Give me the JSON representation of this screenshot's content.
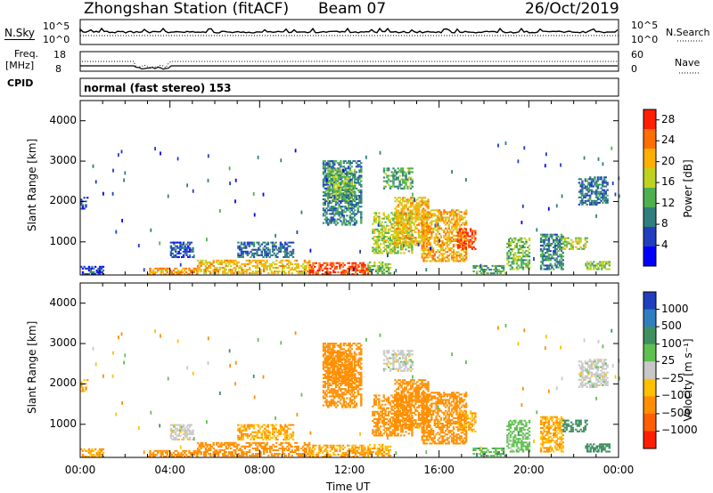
{
  "header": {
    "station": "Zhongshan Station (fitACF)",
    "beam": "Beam 07",
    "date": "26/Oct/2019"
  },
  "status_panel": {
    "nsky_label": "N.Sky",
    "nsky_ticks": [
      "10^5",
      "10^0"
    ],
    "nsearch_label": "N.Search",
    "nsearch_ticks": [
      "10^5",
      "10^0"
    ],
    "freq_label": "Freq.",
    "freq_unit": "[MHz]",
    "freq_ticks": [
      "18",
      "8"
    ],
    "nave_label": "Nave",
    "nave_ticks": [
      "60",
      "0"
    ],
    "cpid_label": "CPID",
    "cpid_text": "normal (fast stereo) 153"
  },
  "chart_data": [
    {
      "type": "heatmap",
      "parameter": "power",
      "ylabel": "Slant Range [km]",
      "xlabel": "",
      "x_range_hours": [
        0,
        24
      ],
      "ylim": [
        180,
        4500
      ],
      "y_ticks": [
        "1000",
        "2000",
        "3000",
        "4000"
      ],
      "colorbar_label": "Power [dB]",
      "colorbar_ticks": [
        "4",
        "8",
        "12",
        "16",
        "20",
        "24",
        "28"
      ],
      "colorbar_range": [
        0,
        30
      ],
      "colorbar_colors": [
        "#0000ff",
        "#1f3fbf",
        "#2f7f7f",
        "#4fb04f",
        "#bfd21f",
        "#ffaf00",
        "#ff6f00",
        "#ff1f00"
      ],
      "patches": [
        {
          "t": [
            0.0,
            1.0
          ],
          "r": [
            180,
            380
          ],
          "v": 5
        },
        {
          "t": [
            3.0,
            5.2
          ],
          "r": [
            180,
            360
          ],
          "v": 22
        },
        {
          "t": [
            5.2,
            10.2
          ],
          "r": [
            200,
            560
          ],
          "v": 20
        },
        {
          "t": [
            10.2,
            12.8
          ],
          "r": [
            180,
            480
          ],
          "v": 27
        },
        {
          "t": [
            12.8,
            13.8
          ],
          "r": [
            200,
            500
          ],
          "v": 14
        },
        {
          "t": [
            13.0,
            14.8
          ],
          "r": [
            700,
            1700
          ],
          "v": 16
        },
        {
          "t": [
            14.0,
            15.5
          ],
          "r": [
            900,
            2100
          ],
          "v": 20
        },
        {
          "t": [
            15.2,
            17.2
          ],
          "r": [
            500,
            1800
          ],
          "v": 21
        },
        {
          "t": [
            16.8,
            17.6
          ],
          "r": [
            800,
            1300
          ],
          "v": 27
        },
        {
          "t": [
            10.8,
            12.5
          ],
          "r": [
            1400,
            3000
          ],
          "v": 9
        },
        {
          "t": [
            11.0,
            12.2
          ],
          "r": [
            2000,
            2800
          ],
          "v": 14
        },
        {
          "t": [
            13.5,
            14.8
          ],
          "r": [
            2300,
            2800
          ],
          "v": 12
        },
        {
          "t": [
            19.0,
            20.0
          ],
          "r": [
            300,
            1100
          ],
          "v": 14
        },
        {
          "t": [
            20.5,
            21.5
          ],
          "r": [
            300,
            1200
          ],
          "v": 10
        },
        {
          "t": [
            21.5,
            22.6
          ],
          "r": [
            800,
            1100
          ],
          "v": 16
        },
        {
          "t": [
            22.5,
            23.6
          ],
          "r": [
            300,
            500
          ],
          "v": 14
        },
        {
          "t": [
            22.2,
            23.5
          ],
          "r": [
            1900,
            2600
          ],
          "v": 8
        },
        {
          "t": [
            0.0,
            0.3
          ],
          "r": [
            1800,
            2100
          ],
          "v": 5
        },
        {
          "t": [
            17.5,
            19.0
          ],
          "r": [
            200,
            400
          ],
          "v": 12
        },
        {
          "t": [
            4.0,
            5.0
          ],
          "r": [
            600,
            1000
          ],
          "v": 6
        },
        {
          "t": [
            7.0,
            9.5
          ],
          "r": [
            600,
            1000
          ],
          "v": 8
        }
      ]
    },
    {
      "type": "heatmap",
      "parameter": "velocity",
      "ylabel": "Slant Range [km]",
      "xlabel": "Time UT",
      "x_range_hours": [
        0,
        24
      ],
      "x_ticks": [
        "00:00",
        "04:00",
        "08:00",
        "12:00",
        "16:00",
        "20:00",
        "00:00"
      ],
      "ylim": [
        180,
        4500
      ],
      "y_ticks": [
        "1000",
        "2000",
        "3000",
        "4000"
      ],
      "colorbar_label": "Velocity [m s⁻¹]",
      "colorbar_ticks": [
        "1000",
        "500",
        "100",
        "25",
        "−25",
        "−100",
        "−500",
        "−1000"
      ],
      "colorbar_colors": [
        "#1f3fbf",
        "#2f7fbf",
        "#3f8f5f",
        "#5fc04f",
        "#c8c8c8",
        "#ffc000",
        "#ff8f00",
        "#ff5f00",
        "#ff1f00"
      ],
      "patches": [
        {
          "t": [
            0.0,
            1.0
          ],
          "r": [
            180,
            380
          ],
          "v": -100
        },
        {
          "t": [
            3.0,
            5.2
          ],
          "r": [
            180,
            360
          ],
          "v": -200
        },
        {
          "t": [
            5.2,
            10.2
          ],
          "r": [
            200,
            560
          ],
          "v": -200
        },
        {
          "t": [
            10.2,
            12.8
          ],
          "r": [
            180,
            480
          ],
          "v": -100
        },
        {
          "t": [
            12.8,
            13.8
          ],
          "r": [
            200,
            500
          ],
          "v": -100
        },
        {
          "t": [
            13.0,
            14.8
          ],
          "r": [
            700,
            1700
          ],
          "v": -200
        },
        {
          "t": [
            14.0,
            15.5
          ],
          "r": [
            900,
            2100
          ],
          "v": -300
        },
        {
          "t": [
            15.2,
            17.2
          ],
          "r": [
            500,
            1800
          ],
          "v": -200
        },
        {
          "t": [
            16.8,
            17.6
          ],
          "r": [
            800,
            1300
          ],
          "v": -100
        },
        {
          "t": [
            10.8,
            12.5
          ],
          "r": [
            1400,
            3000
          ],
          "v": -200
        },
        {
          "t": [
            11.0,
            12.2
          ],
          "r": [
            2000,
            2800
          ],
          "v": -300
        },
        {
          "t": [
            13.5,
            14.8
          ],
          "r": [
            2300,
            2800
          ],
          "v": 0
        },
        {
          "t": [
            19.0,
            20.0
          ],
          "r": [
            300,
            1100
          ],
          "v": 50
        },
        {
          "t": [
            20.5,
            21.5
          ],
          "r": [
            300,
            1200
          ],
          "v": -100
        },
        {
          "t": [
            21.5,
            22.6
          ],
          "r": [
            800,
            1100
          ],
          "v": 200
        },
        {
          "t": [
            22.5,
            23.6
          ],
          "r": [
            300,
            500
          ],
          "v": 200
        },
        {
          "t": [
            22.2,
            23.5
          ],
          "r": [
            1900,
            2600
          ],
          "v": 0
        },
        {
          "t": [
            0.0,
            0.3
          ],
          "r": [
            1800,
            2100
          ],
          "v": -100
        },
        {
          "t": [
            17.5,
            19.0
          ],
          "r": [
            200,
            400
          ],
          "v": 80
        },
        {
          "t": [
            4.0,
            5.0
          ],
          "r": [
            600,
            1000
          ],
          "v": 0
        },
        {
          "t": [
            7.0,
            9.5
          ],
          "r": [
            600,
            1000
          ],
          "v": -100
        }
      ]
    }
  ]
}
